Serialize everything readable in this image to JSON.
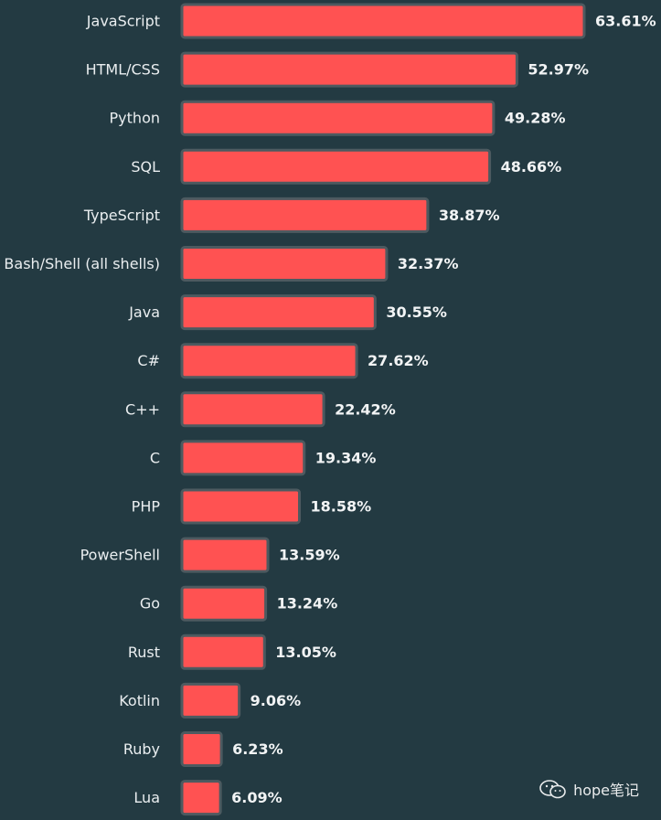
{
  "chart_data": {
    "type": "bar",
    "orientation": "horizontal",
    "title": "",
    "xlabel": "",
    "ylabel": "",
    "xlim": [
      0,
      63.61
    ],
    "grid": false,
    "categories": [
      "JavaScript",
      "HTML/CSS",
      "Python",
      "SQL",
      "TypeScript",
      "Bash/Shell (all shells)",
      "Java",
      "C#",
      "C++",
      "C",
      "PHP",
      "PowerShell",
      "Go",
      "Rust",
      "Kotlin",
      "Ruby",
      "Lua"
    ],
    "values": [
      63.61,
      52.97,
      49.28,
      48.66,
      38.87,
      32.37,
      30.55,
      27.62,
      22.42,
      19.34,
      18.58,
      13.59,
      13.24,
      13.05,
      9.06,
      6.23,
      6.09
    ],
    "value_labels": [
      "63.61%",
      "52.97%",
      "49.28%",
      "48.66%",
      "38.87%",
      "32.37%",
      "30.55%",
      "27.62%",
      "22.42%",
      "19.34%",
      "18.58%",
      "13.59%",
      "13.24%",
      "13.05%",
      "9.06%",
      "6.23%",
      "6.09%"
    ]
  },
  "colors": {
    "background": "#233a42",
    "bar_fill": "#ff5252",
    "bar_stroke": "#4d5a60"
  },
  "watermark": {
    "icon": "wechat-icon",
    "text": "hope笔记"
  }
}
